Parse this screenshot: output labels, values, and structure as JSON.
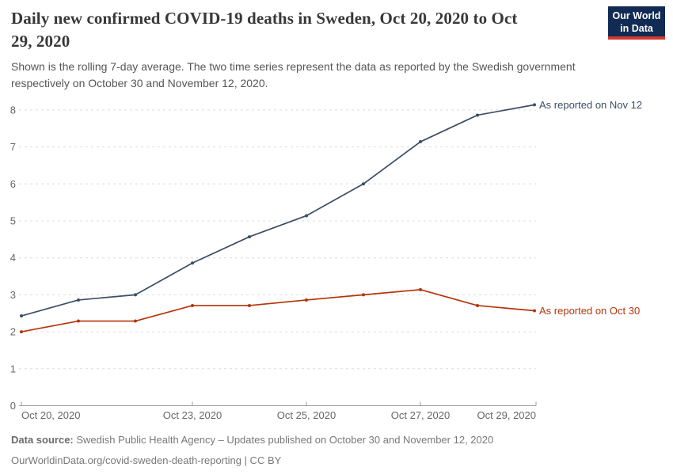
{
  "header": {
    "title_line1": "Daily new confirmed COVID-19 deaths in Sweden, Oct 20, 2020 to Oct",
    "title_line2": "29, 2020",
    "subtitle_line1": "Shown is the rolling 7-day average. The two time series represent the data as reported by the Swedish government",
    "subtitle_line2": "respectively on October 30 and November 12, 2020."
  },
  "logo": {
    "line1": "Our World",
    "line2": "in Data",
    "bg_color": "#112B54",
    "accent_color": "#D4392E"
  },
  "chart_data": {
    "type": "line",
    "title": "Daily new confirmed COVID-19 deaths in Sweden, Oct 20, 2020 to Oct 29, 2020",
    "subtitle": "Shown is the rolling 7-day average. The two time series represent the data as reported by the Swedish government respectively on October 30 and November 12, 2020.",
    "xlabel": "",
    "ylabel": "",
    "x": [
      "Oct 20, 2020",
      "Oct 21, 2020",
      "Oct 22, 2020",
      "Oct 23, 2020",
      "Oct 24, 2020",
      "Oct 25, 2020",
      "Oct 26, 2020",
      "Oct 27, 2020",
      "Oct 28, 2020",
      "Oct 29, 2020"
    ],
    "x_tick_labels": [
      "Oct 20, 2020",
      "Oct 23, 2020",
      "Oct 25, 2020",
      "Oct 27, 2020",
      "Oct 29, 2020"
    ],
    "x_tick_indices": [
      0,
      3,
      5,
      7,
      9
    ],
    "ylim": [
      0,
      8
    ],
    "yticks": [
      0,
      1,
      2,
      3,
      4,
      5,
      6,
      7,
      8
    ],
    "grid": true,
    "grid_color": "#DCDCDC",
    "axis_color": "#999999",
    "tick_text_color": "#666666",
    "legend_position": "end-of-line-labels",
    "series": [
      {
        "name": "As reported on Nov 12",
        "color": "#3C4E66",
        "values": [
          2.43,
          2.86,
          3.0,
          3.86,
          4.57,
          5.14,
          6.0,
          7.14,
          7.86,
          8.14
        ]
      },
      {
        "name": "As reported on Oct 30",
        "color": "#B5350B",
        "values": [
          2.0,
          2.29,
          2.29,
          2.71,
          2.71,
          2.86,
          3.0,
          3.14,
          2.71,
          2.57
        ]
      }
    ]
  },
  "footer": {
    "source_label": "Data source:",
    "source_text": "Swedish Public Health Agency – Updates published on October 30 and November 12, 2020",
    "link_line": "OurWorldinData.org/covid-sweden-death-reporting | CC BY"
  }
}
